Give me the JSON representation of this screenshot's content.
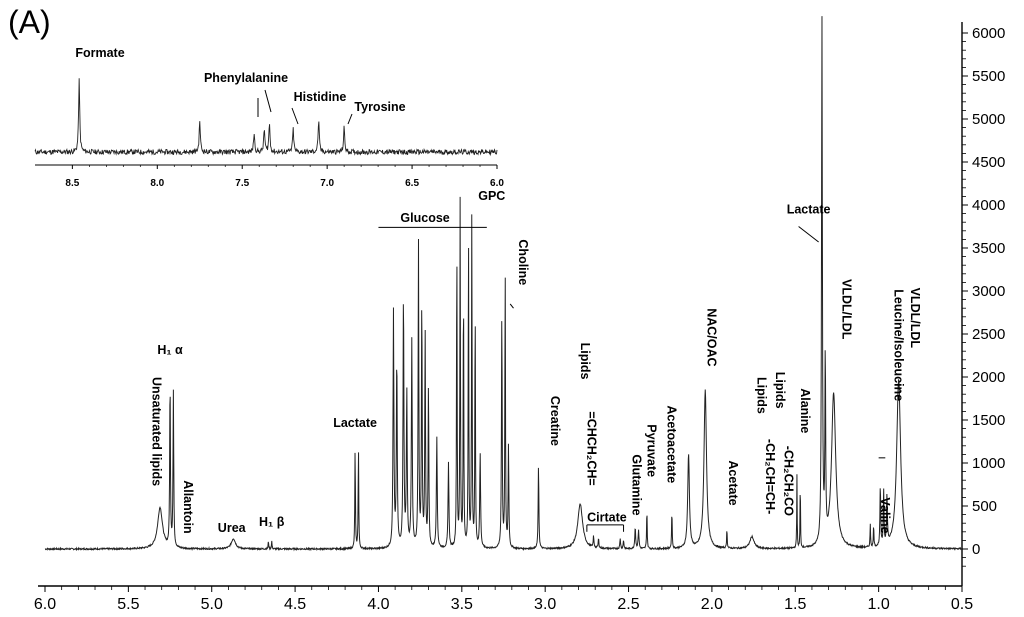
{
  "panel_label": "(A)",
  "chart_data": {
    "type": "line",
    "title": "",
    "xlabel": "",
    "ylabel": "",
    "x_reversed": true,
    "xlim": [
      6.0,
      0.5
    ],
    "ylim": [
      -300,
      6100
    ],
    "x_ticks": [
      "6.0",
      "5.5",
      "5.0",
      "4.5",
      "4.0",
      "3.5",
      "3.0",
      "2.5",
      "2.0",
      "1.5",
      "1.0",
      "0.5"
    ],
    "y_ticks": [
      "6000",
      "5500",
      "5000",
      "4500",
      "4000",
      "3500",
      "3000",
      "2500",
      "2000",
      "1500",
      "1000",
      "500",
      "0"
    ],
    "y_axis_side": "right",
    "series": [
      {
        "type": "peaks",
        "baseline": 0,
        "peaks": [
          {
            "ppm": 5.31,
            "height": 480,
            "width": 0.035
          },
          {
            "ppm": 5.25,
            "height": 1950,
            "width": 0.005
          },
          {
            "ppm": 5.23,
            "height": 1800,
            "width": 0.005
          },
          {
            "ppm": 4.87,
            "height": 120,
            "width": 0.03
          },
          {
            "ppm": 4.66,
            "height": 90,
            "width": 0.004
          },
          {
            "ppm": 4.64,
            "height": 90,
            "width": 0.004
          },
          {
            "ppm": 4.14,
            "height": 1200,
            "width": 0.004
          },
          {
            "ppm": 4.12,
            "height": 1200,
            "width": 0.004
          },
          {
            "ppm": 3.91,
            "height": 2750,
            "width": 0.006
          },
          {
            "ppm": 3.89,
            "height": 2200,
            "width": 0.006
          },
          {
            "ppm": 3.85,
            "height": 2950,
            "width": 0.006
          },
          {
            "ppm": 3.83,
            "height": 1800,
            "width": 0.006
          },
          {
            "ppm": 3.8,
            "height": 2400,
            "width": 0.006
          },
          {
            "ppm": 3.76,
            "height": 3550,
            "width": 0.005
          },
          {
            "ppm": 3.74,
            "height": 2900,
            "width": 0.005
          },
          {
            "ppm": 3.72,
            "height": 2500,
            "width": 0.005
          },
          {
            "ppm": 3.7,
            "height": 1900,
            "width": 0.005
          },
          {
            "ppm": 3.65,
            "height": 1300,
            "width": 0.006
          },
          {
            "ppm": 3.58,
            "height": 1000,
            "width": 0.006
          },
          {
            "ppm": 3.53,
            "height": 3700,
            "width": 0.004
          },
          {
            "ppm": 3.51,
            "height": 4050,
            "width": 0.004
          },
          {
            "ppm": 3.49,
            "height": 3200,
            "width": 0.004
          },
          {
            "ppm": 3.46,
            "height": 3700,
            "width": 0.004
          },
          {
            "ppm": 3.44,
            "height": 3950,
            "width": 0.004
          },
          {
            "ppm": 3.42,
            "height": 2900,
            "width": 0.004
          },
          {
            "ppm": 3.39,
            "height": 1100,
            "width": 0.006
          },
          {
            "ppm": 3.26,
            "height": 2750,
            "width": 0.005
          },
          {
            "ppm": 3.24,
            "height": 3350,
            "width": 0.004
          },
          {
            "ppm": 3.22,
            "height": 1200,
            "width": 0.005
          },
          {
            "ppm": 3.04,
            "height": 980,
            "width": 0.005
          },
          {
            "ppm": 2.79,
            "height": 520,
            "width": 0.035
          },
          {
            "ppm": 2.71,
            "height": 130,
            "width": 0.005
          },
          {
            "ppm": 2.68,
            "height": 110,
            "width": 0.005
          },
          {
            "ppm": 2.55,
            "height": 120,
            "width": 0.005
          },
          {
            "ppm": 2.53,
            "height": 100,
            "width": 0.005
          },
          {
            "ppm": 2.46,
            "height": 250,
            "width": 0.006
          },
          {
            "ppm": 2.44,
            "height": 220,
            "width": 0.006
          },
          {
            "ppm": 2.39,
            "height": 470,
            "width": 0.004
          },
          {
            "ppm": 2.24,
            "height": 460,
            "width": 0.004
          },
          {
            "ppm": 2.14,
            "height": 1100,
            "width": 0.012
          },
          {
            "ppm": 2.04,
            "height": 1850,
            "width": 0.018
          },
          {
            "ppm": 1.91,
            "height": 230,
            "width": 0.004
          },
          {
            "ppm": 1.76,
            "height": 140,
            "width": 0.03
          },
          {
            "ppm": 1.49,
            "height": 850,
            "width": 0.003
          },
          {
            "ppm": 1.47,
            "height": 850,
            "width": 0.003
          },
          {
            "ppm": 1.34,
            "height": 6100,
            "width": 0.006
          },
          {
            "ppm": 1.32,
            "height": 2200,
            "width": 0.005
          },
          {
            "ppm": 1.27,
            "height": 1800,
            "width": 0.03
          },
          {
            "ppm": 1.05,
            "height": 260,
            "width": 0.004
          },
          {
            "ppm": 1.03,
            "height": 260,
            "width": 0.004
          },
          {
            "ppm": 0.99,
            "height": 720,
            "width": 0.005
          },
          {
            "ppm": 0.97,
            "height": 640,
            "width": 0.005
          },
          {
            "ppm": 0.95,
            "height": 560,
            "width": 0.006
          },
          {
            "ppm": 0.88,
            "height": 1980,
            "width": 0.028
          }
        ]
      }
    ],
    "annotations": [
      {
        "text": "H₁ α",
        "ppm": 5.25,
        "y": 2270,
        "rotated": false
      },
      {
        "text": "Unsaturated lipids",
        "ppm": 5.38,
        "y": 2000,
        "rotated": true
      },
      {
        "text": "Allantoin",
        "ppm": 5.19,
        "y": 800,
        "rotated": true
      },
      {
        "text": "Urea",
        "ppm": 4.88,
        "y": 200,
        "rotated": false
      },
      {
        "text": "H₁ β",
        "ppm": 4.64,
        "y": 270,
        "rotated": false
      },
      {
        "text": "Lactate",
        "ppm": 4.14,
        "y": 1420,
        "rotated": false
      },
      {
        "text": "Glucose",
        "ppm": 3.72,
        "y": 3800,
        "rotated": false
      },
      {
        "text": "GPC",
        "ppm": 3.32,
        "y": 4060,
        "rotated": false
      },
      {
        "text": "Choline",
        "ppm": 3.18,
        "y": 3600,
        "rotated": true
      },
      {
        "text": "Creatine",
        "ppm": 2.99,
        "y": 1780,
        "rotated": true
      },
      {
        "text": "Lipids",
        "ppm": 2.81,
        "y": 2400,
        "rotated": true
      },
      {
        "text": "=CHCH₂CH=",
        "ppm": 2.77,
        "y": 1600,
        "rotated": true
      },
      {
        "text": "Cirtate",
        "ppm": 2.63,
        "y": 320,
        "rotated": false
      },
      {
        "text": "Glutamine",
        "ppm": 2.5,
        "y": 1100,
        "rotated": true
      },
      {
        "text": "Pyruvate",
        "ppm": 2.41,
        "y": 1450,
        "rotated": true
      },
      {
        "text": "Acetoacetate",
        "ppm": 2.29,
        "y": 1670,
        "rotated": true
      },
      {
        "text": "NAC/OAC",
        "ppm": 2.05,
        "y": 2800,
        "rotated": true
      },
      {
        "text": "Acetate",
        "ppm": 1.92,
        "y": 1030,
        "rotated": true
      },
      {
        "text": "Lipids",
        "ppm": 1.75,
        "y": 2000,
        "rotated": true
      },
      {
        "text": "-CH₂CH=CH-",
        "ppm": 1.7,
        "y": 1280,
        "rotated": true
      },
      {
        "text": "Lipids",
        "ppm": 1.64,
        "y": 2060,
        "rotated": true
      },
      {
        "text": "-CH₂CH₂CO",
        "ppm": 1.59,
        "y": 1200,
        "rotated": true
      },
      {
        "text": "Alanine",
        "ppm": 1.49,
        "y": 1870,
        "rotated": true
      },
      {
        "text": "Lactate",
        "ppm": 1.42,
        "y": 3900,
        "rotated": false
      },
      {
        "text": "VLDL/LDL",
        "ppm": 1.24,
        "y": 3140,
        "rotated": true
      },
      {
        "text": "Valine",
        "ppm": 1.01,
        "y": 600,
        "rotated": true
      },
      {
        "text": "Leucine/Isoleucine",
        "ppm": 0.93,
        "y": 3020,
        "rotated": true
      },
      {
        "text": "VLDL/LDL",
        "ppm": 0.83,
        "y": 3040,
        "rotated": true
      }
    ],
    "inset": {
      "type": "line",
      "xlim": [
        8.72,
        6.0
      ],
      "x_reversed": true,
      "x_ticks": [
        "8.5",
        "8.0",
        "7.5",
        "7.0",
        "6.5",
        "6.0"
      ],
      "peaks": [
        {
          "ppm": 8.46,
          "height": 1.0
        },
        {
          "ppm": 7.75,
          "height": 0.44
        },
        {
          "ppm": 7.43,
          "height": 0.26
        },
        {
          "ppm": 7.37,
          "height": 0.32
        },
        {
          "ppm": 7.34,
          "height": 0.4
        },
        {
          "ppm": 7.2,
          "height": 0.32
        },
        {
          "ppm": 7.05,
          "height": 0.44
        },
        {
          "ppm": 6.9,
          "height": 0.34
        }
      ],
      "annotations": [
        {
          "text": "Formate",
          "ppm": 8.46
        },
        {
          "text": "Phenylalanine",
          "ppm": 7.4
        },
        {
          "text": "Histidine",
          "ppm": 7.15
        },
        {
          "text": "Tyrosine",
          "ppm": 6.86
        }
      ]
    }
  }
}
